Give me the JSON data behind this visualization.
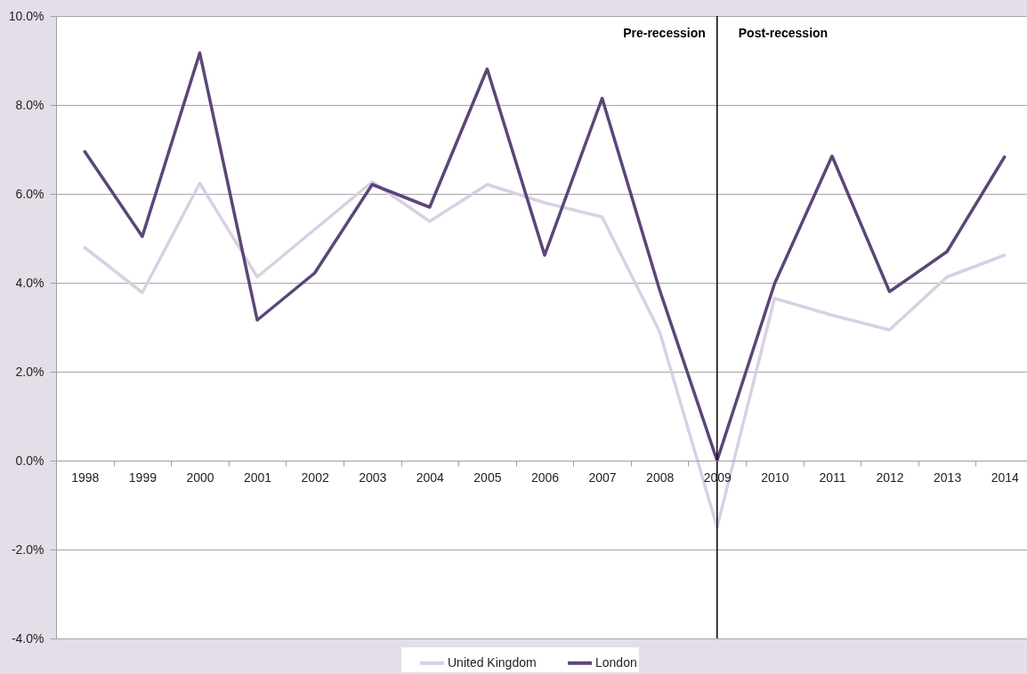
{
  "chart_data": {
    "type": "line",
    "categories": [
      "1998",
      "1999",
      "2000",
      "2001",
      "2002",
      "2003",
      "2004",
      "2005",
      "2006",
      "2007",
      "2008",
      "2009",
      "2010",
      "2011",
      "2012",
      "2013",
      "2014"
    ],
    "series": [
      {
        "name": "United Kingdom",
        "color": "#d9d0e3",
        "values": [
          4.79,
          3.78,
          6.24,
          4.13,
          5.2,
          6.27,
          5.38,
          6.21,
          5.8,
          5.48,
          2.9,
          -1.5,
          3.65,
          3.27,
          2.94,
          4.13,
          4.62
        ]
      },
      {
        "name": "London",
        "color": "#5b4677",
        "values": [
          6.95,
          5.04,
          9.17,
          3.16,
          4.22,
          6.21,
          5.7,
          8.81,
          4.62,
          8.15,
          3.84,
          0,
          3.98,
          6.85,
          3.8,
          4.7,
          6.83
        ]
      }
    ],
    "ylim": [
      -4,
      10
    ],
    "yticks": [
      {
        "value": -4,
        "label": "-4.0%"
      },
      {
        "value": -2,
        "label": "-2.0%"
      },
      {
        "value": 0,
        "label": "0.0%"
      },
      {
        "value": 2,
        "label": "2.0%"
      },
      {
        "value": 4,
        "label": "4.0%"
      },
      {
        "value": 6,
        "label": "6.0%"
      },
      {
        "value": 8,
        "label": "8.0%"
      },
      {
        "value": 10,
        "label": "10.0%"
      }
    ],
    "grid": "y",
    "legend": "bottom",
    "line_style": "solid",
    "ref_lines": [
      {
        "axis": "x",
        "value": "2009",
        "color": "#000000"
      }
    ],
    "annotations": [
      {
        "text": "Pre-recession",
        "x": "2009",
        "y": 9.6
      },
      {
        "text": "Post-recession",
        "x": "2009",
        "y": 9.6
      }
    ]
  }
}
